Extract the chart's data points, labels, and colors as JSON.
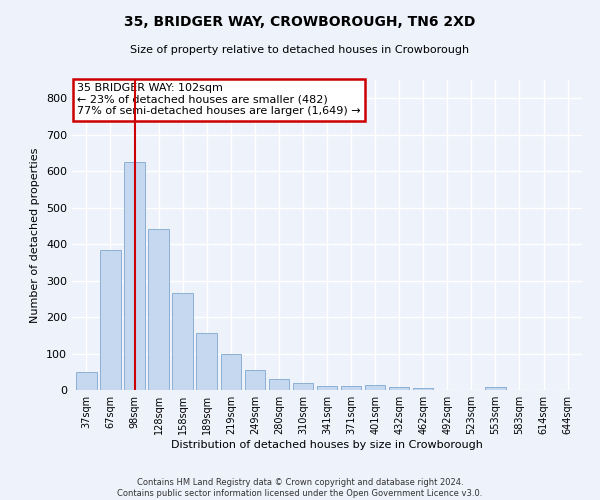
{
  "title": "35, BRIDGER WAY, CROWBOROUGH, TN6 2XD",
  "subtitle": "Size of property relative to detached houses in Crowborough",
  "xlabel": "Distribution of detached houses by size in Crowborough",
  "ylabel": "Number of detached properties",
  "footer_line1": "Contains HM Land Registry data © Crown copyright and database right 2024.",
  "footer_line2": "Contains public sector information licensed under the Open Government Licence v3.0.",
  "categories": [
    "37sqm",
    "67sqm",
    "98sqm",
    "128sqm",
    "158sqm",
    "189sqm",
    "219sqm",
    "249sqm",
    "280sqm",
    "310sqm",
    "341sqm",
    "371sqm",
    "401sqm",
    "432sqm",
    "462sqm",
    "492sqm",
    "523sqm",
    "553sqm",
    "583sqm",
    "614sqm",
    "644sqm"
  ],
  "values": [
    50,
    385,
    625,
    442,
    267,
    157,
    98,
    55,
    30,
    18,
    12,
    12,
    15,
    8,
    5,
    0,
    0,
    8,
    0,
    0,
    0
  ],
  "bar_color": "#c5d8ef",
  "bar_edge_color": "#8ab0d4",
  "background_color": "#eef2fb",
  "grid_color": "#ffffff",
  "marker_bar_index": 2,
  "marker_line_color": "#cc0000",
  "annotation_title": "35 BRIDGER WAY: 102sqm",
  "annotation_line1": "← 23% of detached houses are smaller (482)",
  "annotation_line2": "77% of semi-detached houses are larger (1,649) →",
  "annotation_box_color": "#ffffff",
  "annotation_box_edge_color": "#cc0000",
  "ylim": [
    0,
    850
  ],
  "yticks": [
    0,
    100,
    200,
    300,
    400,
    500,
    600,
    700,
    800
  ]
}
